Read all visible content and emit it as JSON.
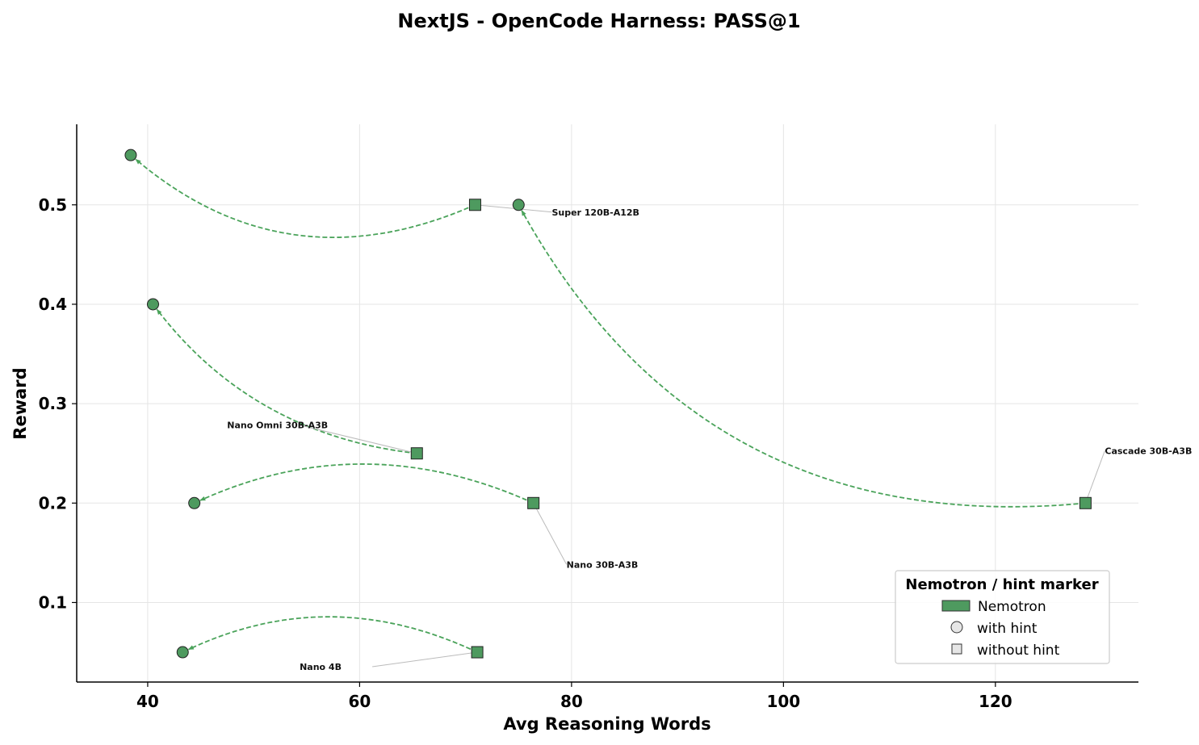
{
  "chart_data": {
    "type": "scatter",
    "title": "NextJS - OpenCode Harness: PASS@1",
    "xlabel": "Avg Reasoning Words",
    "ylabel": "Reward",
    "xlim": [
      33.3,
      133.5
    ],
    "ylim": [
      0.02,
      0.581
    ],
    "xticks": [
      40,
      60,
      80,
      100,
      120
    ],
    "yticks": [
      0.1,
      0.2,
      0.3,
      0.4,
      0.5
    ],
    "grid": true,
    "color": "#4e9a5f",
    "arrow_color": "#4aa35a",
    "legend": {
      "title": "Nemotron / hint marker",
      "placement": "lower right",
      "entries": [
        {
          "label": "Nemotron",
          "marker": "patch"
        },
        {
          "label": "with hint",
          "marker": "circle"
        },
        {
          "label": "without hint",
          "marker": "square"
        }
      ]
    },
    "models": [
      {
        "name": "Super 120B-A12B",
        "without_hint": {
          "x": 70.9,
          "y": 0.5
        },
        "with_hint": {
          "x": 38.4,
          "y": 0.55
        }
      },
      {
        "name": "Cascade 30B-A3B",
        "without_hint": {
          "x": 128.5,
          "y": 0.2
        },
        "with_hint": {
          "x": 75.0,
          "y": 0.5
        }
      },
      {
        "name": "Nano Omni 30B-A3B",
        "without_hint": {
          "x": 65.4,
          "y": 0.25
        },
        "with_hint": {
          "x": 40.5,
          "y": 0.4
        }
      },
      {
        "name": "Nano 30B-A3B",
        "without_hint": {
          "x": 76.4,
          "y": 0.2
        },
        "with_hint": {
          "x": 44.4,
          "y": 0.2
        }
      },
      {
        "name": "Nano 4B",
        "without_hint": {
          "x": 71.1,
          "y": 0.05
        },
        "with_hint": {
          "x": 43.3,
          "y": 0.05
        }
      }
    ]
  }
}
